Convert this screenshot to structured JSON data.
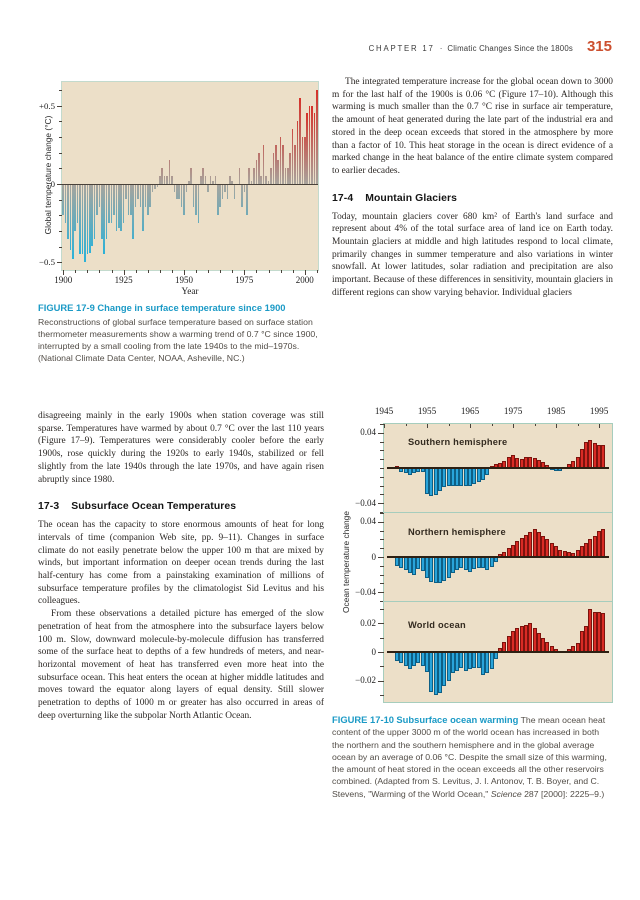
{
  "header": {
    "chapter_label": "CHAPTER 17",
    "bullet": "·",
    "title": "Climatic Changes Since the 1800s",
    "page_number": "315"
  },
  "left_column": {
    "figure9_caption": {
      "label": "FIGURE 17-9",
      "title": "Change in surface temperature since 1900",
      "body": "Reconstructions of global surface temperature based on surface station thermometer measurements show a warming trend of 0.7 °C since 1900, interrupted by a small cooling from the late 1940s to the mid–1970s.  (National Climate Data Center, NOAA, Asheville, NC.)"
    },
    "para_continuation": "disagreeing mainly in the early 1900s when station coverage was still sparse. Temperatures have warmed by about 0.7 °C over the last 110 years (Figure 17–9). Temperatures were considerably cooler before the early 1900s, rose quickly during the 1920s to early 1940s, stabilized or fell slightly from the late 1940s through the late 1970s, and have again risen abruptly since 1980.",
    "section_17_3": {
      "number": "17-3",
      "title": "Subsurface Ocean Temperatures"
    },
    "para_ocean_capacity": "The ocean has the capacity to store enormous amounts of heat for long intervals of time (companion Web site, pp. 9–11). Changes in surface climate do not easily penetrate below the upper 100 m that are mixed by winds, but important information on deeper ocean trends during the last half-century has come from a painstaking examination of millions of subsurface temperature profiles by the climatologist Sid Levitus and his colleagues.",
    "para_observations": "From these observations a detailed picture has emerged of the slow penetration of heat from the atmosphere into the subsurface layers below 100 m. Slow, downward molecule-by-molecule diffusion has transferred some of the surface heat to depths of a few hundreds of meters, and near-horizontal movement of heat has transferred even more heat into the subsurface ocean. This heat enters the ocean at higher middle latitudes and moves toward the equator along layers of equal density. Still slower penetration to depths of 1000 m or greater has also occurred in areas of deep overturning like the subpolar North Atlantic Ocean."
  },
  "right_column": {
    "para_integrated": "The integrated temperature increase for the global ocean down to 3000 m for the last half of the 1900s is 0.06 °C (Figure 17–10). Although this warming is much smaller than the 0.7 °C rise in surface air temperature, the amount of heat generated during the late part of the industrial era and stored in the deep ocean exceeds that stored in the atmosphere by more than a factor of 10. This heat storage in the ocean is direct evidence of a marked change in the heat balance of the entire climate system compared to earlier decades.",
    "section_17_4": {
      "number": "17-4",
      "title": "Mountain Glaciers"
    },
    "para_glaciers": "Today, mountain glaciers cover 680 km² of Earth's land surface and represent about 4% of the total surface area of land ice on Earth today. Mountain glaciers at middle and high latitudes respond to local climate, primarily changes in summer temperature and also variations in winter snowfall. At lower latitudes, solar radiation and precipitation are also important. Because of these differences in sensitivity, mountain glaciers in different regions can show varying behavior. Individual glaciers",
    "figure10_caption": {
      "label": "FIGURE 17-10",
      "title": "Subsurface ocean warming",
      "body_1": "The mean ocean heat content of the upper 3000 m of the world ocean has increased in both the northern and the southern hemisphere and in the global average ocean by an average of 0.06 °C. Despite the small size of this warming, the amount of heat stored in the ocean exceeds all the other reservoirs combined. (Adapted from S. Levitus, J. I. Antonov, T. B. Boyer, and C. Stevens, \"Warming of the World Ocean,\" ",
      "journal_italic": "Science",
      "body_2": " 287 [2000]: 2225–9.)"
    }
  },
  "chart_data": [
    {
      "id": "figure-17-9",
      "type": "bar",
      "xlabel": "Year",
      "ylabel": "Global temperature change (°C)",
      "x_start": 1900,
      "x_end": 2005,
      "x_ticks": [
        1900,
        1925,
        1950,
        1975,
        2000
      ],
      "y_ticks": [
        {
          "label": "+0.5",
          "value": 0.5
        },
        {
          "label": "0",
          "value": 0
        },
        {
          "label": "−0.5",
          "value": -0.5
        }
      ],
      "ylim": [
        -0.55,
        0.65
      ],
      "colors": {
        "positive_deep": "#d5322a",
        "negative_deep": "#2cb2d8",
        "neutral": "#a8a49d",
        "plot_bg": "#ecdfc8"
      },
      "values": [
        -0.2,
        -0.25,
        -0.35,
        -0.42,
        -0.48,
        -0.3,
        -0.25,
        -0.45,
        -0.45,
        -0.5,
        -0.45,
        -0.44,
        -0.4,
        -0.35,
        -0.2,
        -0.15,
        -0.35,
        -0.45,
        -0.35,
        -0.25,
        -0.25,
        -0.2,
        -0.3,
        -0.28,
        -0.3,
        -0.25,
        -0.1,
        -0.2,
        -0.2,
        -0.35,
        -0.15,
        -0.1,
        -0.15,
        -0.3,
        -0.15,
        -0.2,
        -0.15,
        -0.05,
        -0.03,
        -0.02,
        0.05,
        0.1,
        0.05,
        0.05,
        0.15,
        0.05,
        -0.05,
        -0.1,
        -0.1,
        -0.15,
        -0.2,
        -0.05,
        0.02,
        0.1,
        -0.15,
        -0.2,
        -0.25,
        0.05,
        0.1,
        0.05,
        -0.05,
        0.05,
        0.02,
        0.05,
        -0.2,
        -0.15,
        -0.1,
        -0.05,
        -0.1,
        0.05,
        0.02,
        -0.1,
        0.0,
        0.1,
        -0.15,
        -0.05,
        -0.2,
        0.1,
        0.02,
        0.1,
        0.15,
        0.2,
        0.05,
        0.25,
        0.05,
        0.02,
        0.1,
        0.2,
        0.25,
        0.15,
        0.3,
        0.25,
        0.1,
        0.1,
        0.2,
        0.35,
        0.25,
        0.4,
        0.55,
        0.3,
        0.3,
        0.45,
        0.5,
        0.5,
        0.45,
        0.6
      ]
    },
    {
      "id": "figure-17-10",
      "type": "bar",
      "ylabel": "Ocean temperature change",
      "x_ticks": [
        1945,
        1955,
        1965,
        1975,
        1985,
        1995
      ],
      "xlim": [
        1945,
        1998
      ],
      "x_start": 1948,
      "colors": {
        "positive": "#d92b25",
        "positive_border": "#7c130d",
        "negative": "#29a4da",
        "negative_border": "#0e5f85",
        "plot_bg": "#ecdfc8"
      },
      "panels": [
        {
          "label": "Southern hemisphere",
          "ymax": 0.05,
          "y_ticks": [
            {
              "label": "0.04",
              "value": 0.04
            },
            {
              "label": "−0.04",
              "value": -0.04
            }
          ],
          "values": [
            0.002,
            -0.004,
            -0.006,
            -0.008,
            -0.006,
            -0.004,
            -0.005,
            -0.03,
            -0.032,
            -0.031,
            -0.026,
            -0.022,
            -0.02,
            -0.02,
            -0.02,
            -0.02,
            -0.02,
            -0.021,
            -0.018,
            -0.016,
            -0.014,
            -0.008,
            0.002,
            0.004,
            0.006,
            0.008,
            0.013,
            0.015,
            0.011,
            0.01,
            0.012,
            0.013,
            0.011,
            0.009,
            0.007,
            0.003,
            -0.002,
            -0.003,
            -0.003,
            0.001,
            0.005,
            0.008,
            0.012,
            0.022,
            0.03,
            0.032,
            0.028,
            0.026,
            0.026
          ]
        },
        {
          "label": "Northern hemisphere",
          "ymax": 0.05,
          "y_ticks": [
            {
              "label": "0.04",
              "value": 0.04
            },
            {
              "label": "0",
              "value": 0
            },
            {
              "label": "−0.04",
              "value": -0.04
            }
          ],
          "values": [
            -0.01,
            -0.012,
            -0.015,
            -0.018,
            -0.02,
            -0.014,
            -0.016,
            -0.024,
            -0.028,
            -0.03,
            -0.029,
            -0.027,
            -0.024,
            -0.018,
            -0.015,
            -0.013,
            -0.015,
            -0.017,
            -0.014,
            -0.012,
            -0.013,
            -0.015,
            -0.011,
            -0.006,
            0.003,
            0.006,
            0.01,
            0.014,
            0.018,
            0.022,
            0.025,
            0.028,
            0.032,
            0.028,
            0.024,
            0.02,
            0.016,
            0.012,
            0.008,
            0.007,
            0.006,
            0.004,
            0.008,
            0.012,
            0.016,
            0.02,
            0.024,
            0.03,
            0.032
          ]
        },
        {
          "label": "World ocean",
          "ymax": 0.035,
          "y_ticks": [
            {
              "label": "0.02",
              "value": 0.02
            },
            {
              "label": "0",
              "value": 0
            },
            {
              "label": "−0.02",
              "value": -0.02
            }
          ],
          "values": [
            -0.006,
            -0.008,
            -0.01,
            -0.012,
            -0.01,
            -0.008,
            -0.01,
            -0.014,
            -0.028,
            -0.03,
            -0.029,
            -0.024,
            -0.02,
            -0.015,
            -0.013,
            -0.011,
            -0.013,
            -0.012,
            -0.011,
            -0.011,
            -0.016,
            -0.015,
            -0.012,
            -0.005,
            0.003,
            0.007,
            0.011,
            0.015,
            0.017,
            0.018,
            0.019,
            0.02,
            0.017,
            0.013,
            0.01,
            0.007,
            0.004,
            0.002,
            0.001,
            0.001,
            0.002,
            0.004,
            0.006,
            0.015,
            0.018,
            0.03,
            0.028,
            0.028,
            0.027
          ]
        }
      ]
    }
  ]
}
